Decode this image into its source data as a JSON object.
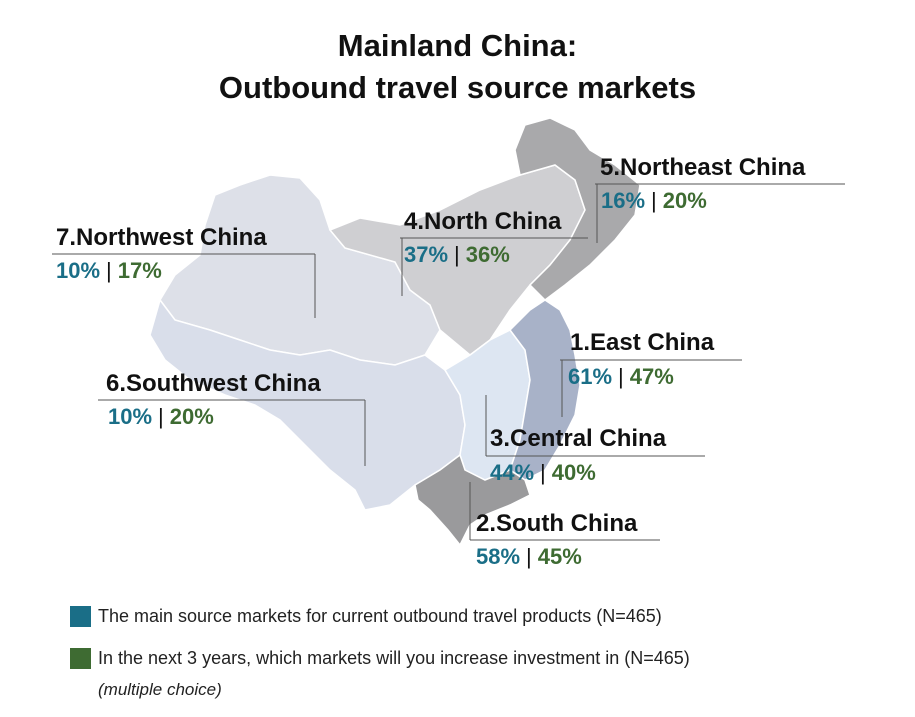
{
  "title_line1": "Mainland China:",
  "title_line2": "Outbound travel source markets",
  "colors": {
    "current": "#1a6e87",
    "invest": "#3e6b32",
    "northwest": "#dde0e8",
    "southwest": "#d9deea",
    "north": "#cfcfd2",
    "northeast": "#a9a9ab",
    "central": "#dde6f2",
    "east": "#a8b2c8",
    "south": "#9a9a9c"
  },
  "regions": [
    {
      "id": "northeast",
      "name": "5.Northeast China",
      "current": "16%",
      "invest": "20%"
    },
    {
      "id": "north",
      "name": "4.North China",
      "current": "37%",
      "invest": "36%"
    },
    {
      "id": "northwest",
      "name": "7.Northwest China",
      "current": "10%",
      "invest": "17%"
    },
    {
      "id": "east",
      "name": "1.East China",
      "current": "61%",
      "invest": "47%"
    },
    {
      "id": "southwest",
      "name": "6.Southwest China",
      "current": "10%",
      "invest": "20%"
    },
    {
      "id": "central",
      "name": "3.Central China",
      "current": "44%",
      "invest": "40%"
    },
    {
      "id": "south",
      "name": "2.South China",
      "current": "58%",
      "invest": "45%"
    }
  ],
  "separator": "|",
  "legend": {
    "current_label": "The main source markets for current outbound travel products (N=465)",
    "invest_label": "In the next 3 years, which markets will you increase investment in (N=465)",
    "invest_note": "(multiple choice)"
  }
}
